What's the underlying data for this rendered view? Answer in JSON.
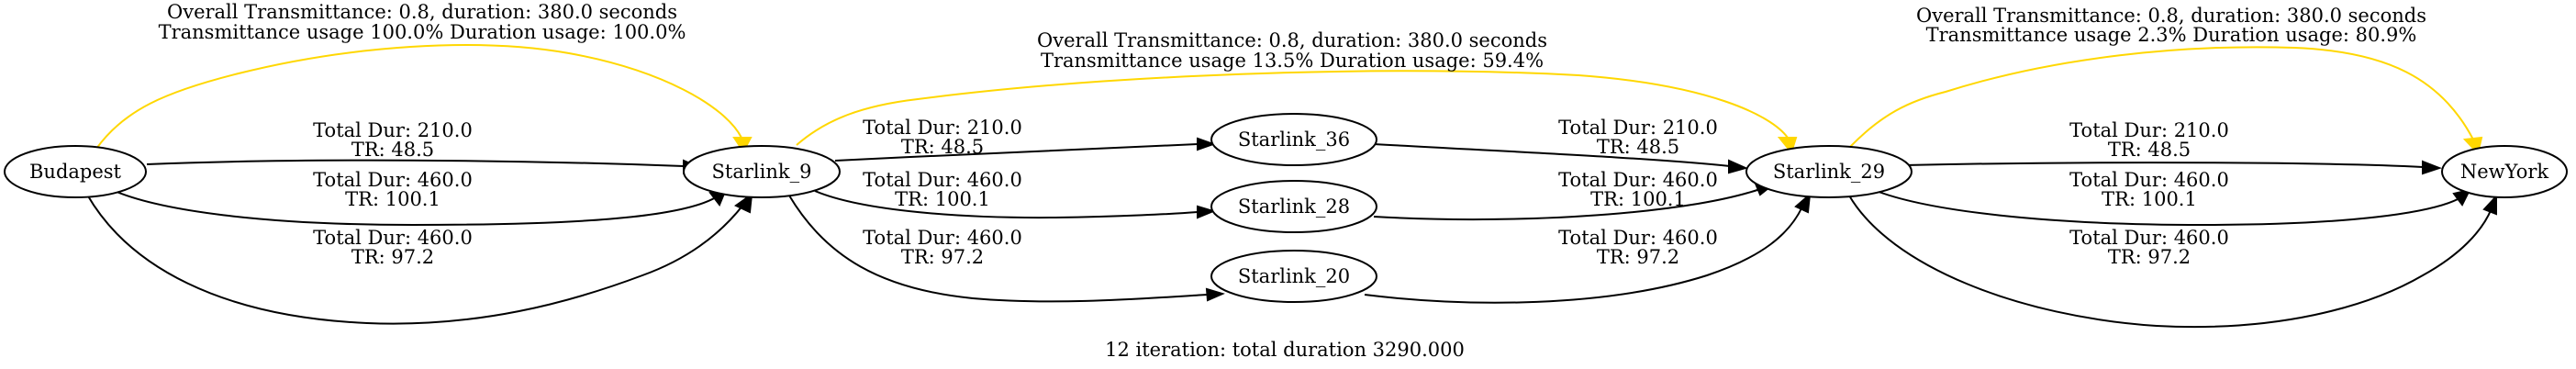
{
  "nodes": {
    "budapest": "Budapest",
    "starlink_9": "Starlink_9",
    "starlink_36": "Starlink_36",
    "starlink_28": "Starlink_28",
    "starlink_20": "Starlink_20",
    "starlink_29": "Starlink_29",
    "newyork": "NewYork"
  },
  "edges": {
    "budapest_s9_a": {
      "line1": "Total Dur: 210.0",
      "line2": "TR: 48.5"
    },
    "budapest_s9_b": {
      "line1": "Total Dur: 460.0",
      "line2": "TR: 100.1"
    },
    "budapest_s9_c": {
      "line1": "Total Dur: 460.0",
      "line2": "TR: 97.2"
    },
    "s9_s36": {
      "line1": "Total Dur: 210.0",
      "line2": "TR: 48.5"
    },
    "s9_s28": {
      "line1": "Total Dur: 460.0",
      "line2": "TR: 100.1"
    },
    "s9_s20": {
      "line1": "Total Dur: 460.0",
      "line2": "TR: 97.2"
    },
    "s36_s29": {
      "line1": "Total Dur: 210.0",
      "line2": "TR: 48.5"
    },
    "s28_s29": {
      "line1": "Total Dur: 460.0",
      "line2": "TR: 100.1"
    },
    "s20_s29": {
      "line1": "Total Dur: 460.0",
      "line2": "TR: 97.2"
    },
    "s29_ny_a": {
      "line1": "Total Dur: 210.0",
      "line2": "TR: 48.5"
    },
    "s29_ny_b": {
      "line1": "Total Dur: 460.0",
      "line2": "TR: 100.1"
    },
    "s29_ny_c": {
      "line1": "Total Dur: 460.0",
      "line2": "TR: 97.2"
    }
  },
  "highlights": {
    "budapest_s9": {
      "line1": "Overall Transmittance: 0.8, duration: 380.0 seconds",
      "line2": "Transmittance usage 100.0% Duration usage: 100.0%"
    },
    "s9_s29": {
      "line1": "Overall Transmittance: 0.8, duration: 380.0 seconds",
      "line2": "Transmittance usage 13.5% Duration usage: 59.4%"
    },
    "s29_ny": {
      "line1": "Overall Transmittance: 0.8, duration: 380.0 seconds",
      "line2": "Transmittance usage 2.3% Duration usage: 80.9%"
    }
  },
  "caption": "12 iteration: total duration 3290.000",
  "colors": {
    "highlight": "#ffd700",
    "default": "#000000"
  }
}
